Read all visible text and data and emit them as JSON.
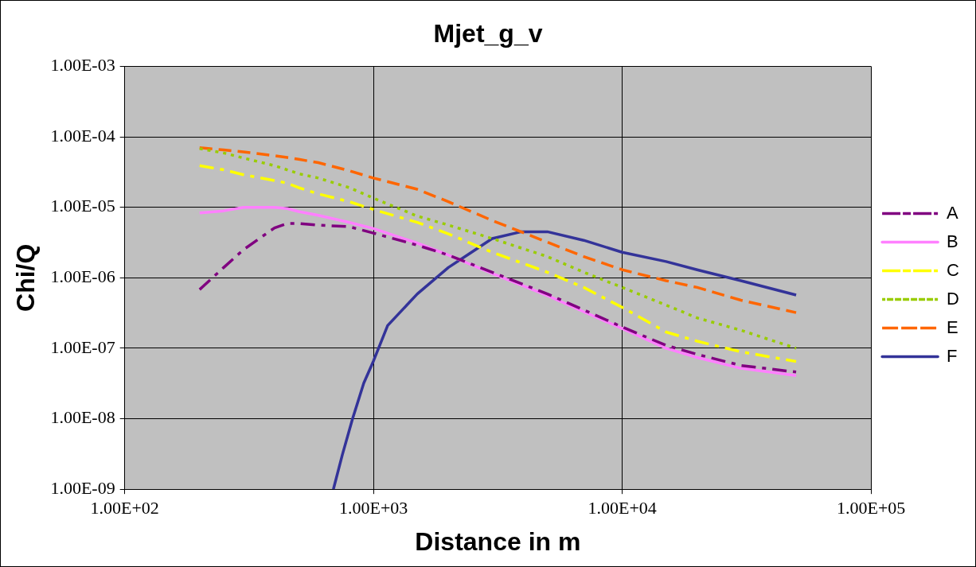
{
  "chart_data": {
    "type": "line",
    "title": "Mjet_g_v",
    "xlabel": "Distance in m",
    "ylabel": "Chi/Q",
    "log": "xy",
    "grid": true,
    "legend": "right",
    "marker": "none",
    "xlim": [
      100,
      100000
    ],
    "xticks": [
      {
        "value": 100,
        "label": "1.00E+02"
      },
      {
        "value": 1000,
        "label": "1.00E+03"
      },
      {
        "value": 10000,
        "label": "1.00E+04"
      },
      {
        "value": 100000,
        "label": "1.00E+05"
      }
    ],
    "ylim": [
      1e-09,
      0.001
    ],
    "yticks": [
      {
        "value": 1e-09,
        "label": "1.00E-09"
      },
      {
        "value": 1e-08,
        "label": "1.00E-08"
      },
      {
        "value": 1e-07,
        "label": "1.00E-07"
      },
      {
        "value": 1e-06,
        "label": "1.00E-06"
      },
      {
        "value": 1e-05,
        "label": "1.00E-05"
      },
      {
        "value": 0.0001,
        "label": "1.00E-04"
      },
      {
        "value": 0.001,
        "label": "1.00E-03"
      }
    ],
    "x": [
      200,
      250,
      300,
      400,
      450,
      500,
      600,
      800,
      1000,
      1500,
      2000,
      3000,
      5000,
      7000,
      10000,
      15000,
      20000,
      30000,
      50000
    ],
    "series": [
      {
        "name": "A",
        "color": "#800080",
        "line_style": "dashdot",
        "values": [
          6.8e-07,
          1.4e-06,
          2.5e-06,
          5.1e-06,
          5.9e-06,
          5.9e-06,
          5.6e-06,
          5.3e-06,
          4.3e-06,
          2.9e-06,
          2.1e-06,
          1.2e-06,
          5.9e-07,
          3.5e-07,
          2e-07,
          1.1e-07,
          8.2e-08,
          5.7e-08,
          4.6e-08
        ]
      },
      {
        "name": "B",
        "color": "#ff80ff",
        "line_style": "solid",
        "values": [
          8.3e-06,
          8.9e-06,
          1e-05,
          1e-05,
          9.6e-06,
          8.7e-06,
          7.7e-06,
          6.1e-06,
          5e-06,
          3.1e-06,
          2.1e-06,
          1.15e-06,
          5.6e-07,
          3.3e-07,
          1.9e-07,
          1e-07,
          7.4e-08,
          5.2e-08,
          4.1e-08
        ]
      },
      {
        "name": "C",
        "color": "#ffff00",
        "line_style": "dashdot",
        "values": [
          3.9e-05,
          3.4e-05,
          2.9e-05,
          2.4e-05,
          2.2e-05,
          1.9e-05,
          1.55e-05,
          1.2e-05,
          9.3e-06,
          6.1e-06,
          4.2e-06,
          2.3e-06,
          1.2e-06,
          7.3e-07,
          3.8e-07,
          1.7e-07,
          1.26e-07,
          8.9e-08,
          6.5e-08
        ]
      },
      {
        "name": "D",
        "color": "#99cc00",
        "line_style": "dotted",
        "values": [
          6.8e-05,
          5.9e-05,
          5e-05,
          3.9e-05,
          3.4e-05,
          3e-05,
          2.6e-05,
          1.9e-05,
          1.35e-05,
          7.5e-06,
          5.6e-06,
          3.6e-06,
          2e-06,
          1.2e-06,
          7.3e-07,
          4.1e-07,
          2.7e-07,
          1.8e-07,
          1e-07
        ]
      },
      {
        "name": "E",
        "color": "#ff6600",
        "line_style": "dashed",
        "values": [
          7e-05,
          6.5e-05,
          6.1e-05,
          5.4e-05,
          5.1e-05,
          4.8e-05,
          4.3e-05,
          3.3e-05,
          2.6e-05,
          1.8e-05,
          1.2e-05,
          6.5e-06,
          3.2e-06,
          2e-06,
          1.3e-06,
          9.1e-07,
          7.3e-07,
          4.8e-07,
          3.2e-07
        ]
      },
      {
        "name": "F",
        "color": "#333399",
        "line_style": "solid",
        "x": [
          690,
          750,
          824,
          914,
          1000,
          1140,
          1500,
          2000,
          2430,
          3000,
          3930,
          5000,
          7000,
          10000,
          15000,
          20000,
          30000,
          50000
        ],
        "values": [
          1e-09,
          3.1e-09,
          1e-08,
          3.2e-08,
          6.6e-08,
          2.1e-07,
          5.9e-07,
          1.4e-06,
          2.2e-06,
          3.6e-06,
          4.5e-06,
          4.5e-06,
          3.4e-06,
          2.3e-06,
          1.7e-06,
          1.3e-06,
          9.1e-07,
          5.7e-07
        ]
      }
    ]
  }
}
